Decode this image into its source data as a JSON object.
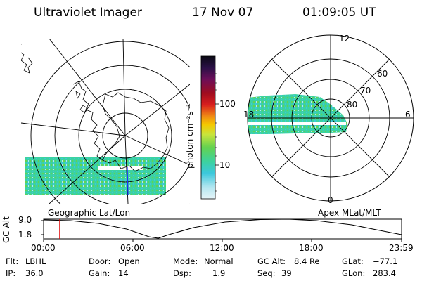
{
  "header": {
    "title": "Ultraviolet Imager",
    "date": "17 Nov 07",
    "time": "01:09:05 UT"
  },
  "colorbar": {
    "unit_label": "photon cm⁻²s⁻¹",
    "ticks": [
      "100",
      "10"
    ],
    "colors": [
      "#0a0a14",
      "#2a1046",
      "#6b0f5a",
      "#a00d1f",
      "#d81e1e",
      "#f08a14",
      "#f5c800",
      "#c8e43c",
      "#64d250",
      "#3cd2a0",
      "#3cc8dc",
      "#b4e6f0",
      "#e6f4f8"
    ]
  },
  "left_map": {
    "label": "Geographic Lat/Lon"
  },
  "right_map": {
    "label": "Apex MLat/MLT",
    "mlt_labels": {
      "top": "12",
      "right": "6",
      "bottom": "0",
      "left": "18"
    },
    "lat_labels": [
      "60",
      "70",
      "80"
    ]
  },
  "alt_plot": {
    "axis_label": "GC Alt",
    "y_ticks": [
      "9.0",
      "1.8"
    ],
    "x_ticks": [
      "00:00",
      "06:00",
      "12:00",
      "18:00",
      "23:59"
    ],
    "marker_color": "#e00000"
  },
  "info": {
    "flt_label": "Flt:",
    "flt_value": "LBHL",
    "ip_label": "IP:",
    "ip_value": "36.0",
    "door_label": "Door:",
    "door_value": "Open",
    "gain_label": "Gain:",
    "gain_value": "14",
    "mode_label": "Mode:",
    "mode_value": "Normal",
    "dsp_label": "Dsp:",
    "dsp_value": "1.9",
    "gcalt_label": "GC Alt:",
    "gcalt_value": "8.4 Re",
    "seq_label": "Seq:",
    "seq_value": "39",
    "glat_label": "GLat:",
    "glat_value": "−77.1",
    "glon_label": "GLon:",
    "glon_value": "283.4"
  }
}
